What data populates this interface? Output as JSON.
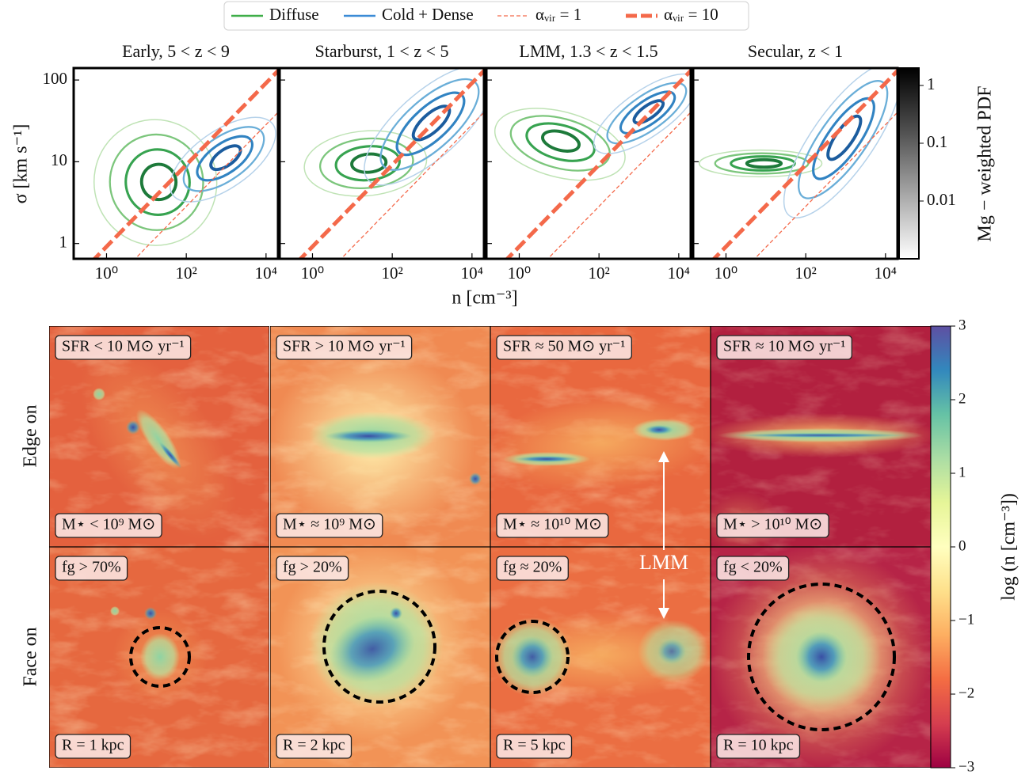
{
  "legend_contours": [
    {
      "name": "Diffuse",
      "color": "#3fae49"
    },
    {
      "name": "Cold + Dense",
      "color": "#3b8bd6"
    }
  ],
  "reference_lines": [
    {
      "name": "αᵥᵢᵣ = 1",
      "color": "#f4694a",
      "width": 1.3,
      "x": [
        0.1,
        100000
      ],
      "values": [
        0.09,
        90
      ]
    },
    {
      "name": "αᵥᵢᵣ = 10",
      "color": "#f4694a",
      "width": 5,
      "x": [
        0.1,
        100000
      ],
      "values": [
        0.29,
        290
      ]
    }
  ],
  "x_label": "n [cm⁻³]",
  "y_label": "σ [km s⁻¹]",
  "chart_data": [
    {
      "type": "contour",
      "title": "Early,  5 < z < 9",
      "log_x": true,
      "log_y": true,
      "xlim": [
        0.15,
        20000
      ],
      "ylim": [
        0.65,
        140
      ],
      "xticks": [
        {
          "value": 1,
          "label": "10⁰"
        },
        {
          "value": 100,
          "label": "10²"
        },
        {
          "value": 10000,
          "label": "10⁴"
        }
      ],
      "yticks": [
        1,
        10,
        100
      ]
    },
    {
      "type": "contour",
      "title": "Starburst,  1 < z < 5",
      "log_x": true,
      "log_y": true,
      "xlim": [
        0.15,
        20000
      ],
      "ylim": [
        0.65,
        140
      ],
      "xticks": [
        {
          "value": 1,
          "label": "10⁰"
        },
        {
          "value": 100,
          "label": "10²"
        },
        {
          "value": 10000,
          "label": "10⁴"
        }
      ],
      "yticks": [
        1,
        10,
        100
      ]
    },
    {
      "type": "contour",
      "title": "LMM,  1.3 < z < 1.5",
      "log_x": true,
      "log_y": true,
      "xlim": [
        0.15,
        20000
      ],
      "ylim": [
        0.65,
        140
      ],
      "xticks": [
        {
          "value": 1,
          "label": "10⁰"
        },
        {
          "value": 100,
          "label": "10²"
        },
        {
          "value": 10000,
          "label": "10⁴"
        }
      ],
      "yticks": [
        1,
        10,
        100
      ]
    },
    {
      "type": "contour",
      "title": "Secular,  z < 1",
      "log_x": true,
      "log_y": true,
      "xlim": [
        0.15,
        20000
      ],
      "ylim": [
        0.65,
        140
      ],
      "xticks": [
        {
          "value": 1,
          "label": "10⁰"
        },
        {
          "value": 100,
          "label": "10²"
        },
        {
          "value": 10000,
          "label": "10⁴"
        }
      ],
      "yticks": [
        1,
        10,
        100
      ]
    }
  ],
  "colorbar_pdf": {
    "label": "Mg − weighted PDF",
    "log": true,
    "lim": [
      0.001,
      2
    ],
    "ticks": [
      1,
      0.1,
      0.01
    ]
  },
  "maps": {
    "rows": [
      "Edge on",
      "Face on"
    ],
    "edge_on": [
      {
        "top": "SFR < 10 M⊙ yr⁻¹",
        "bottom": "M⋆ < 10⁹ M⊙"
      },
      {
        "top": "SFR > 10 M⊙ yr⁻¹",
        "bottom": "M⋆ ≈ 10⁹ M⊙"
      },
      {
        "top": "SFR ≈ 50 M⊙ yr⁻¹",
        "bottom": "M⋆ ≈ 10¹⁰ M⊙"
      },
      {
        "top": "SFR ≈ 10 M⊙ yr⁻¹",
        "bottom": "M⋆ > 10¹⁰ M⊙"
      }
    ],
    "face_on": [
      {
        "top": "fg > 70%",
        "bottom": "R = 1 kpc"
      },
      {
        "top": "fg > 20%",
        "bottom": "R = 2 kpc"
      },
      {
        "top": "fg ≈ 20%",
        "bottom": "R = 5 kpc"
      },
      {
        "top": "fg < 20%",
        "bottom": "R = 10 kpc"
      }
    ],
    "annotation": "LMM"
  },
  "colorbar_density": {
    "label": "log (n [cm⁻³])",
    "lim": [
      -3,
      3
    ],
    "ticks": [
      3,
      2,
      1,
      0,
      {
        "value": -1,
        "label": "−1"
      },
      {
        "value": -2,
        "label": "−2"
      },
      {
        "value": -3,
        "label": "−3"
      }
    ]
  }
}
